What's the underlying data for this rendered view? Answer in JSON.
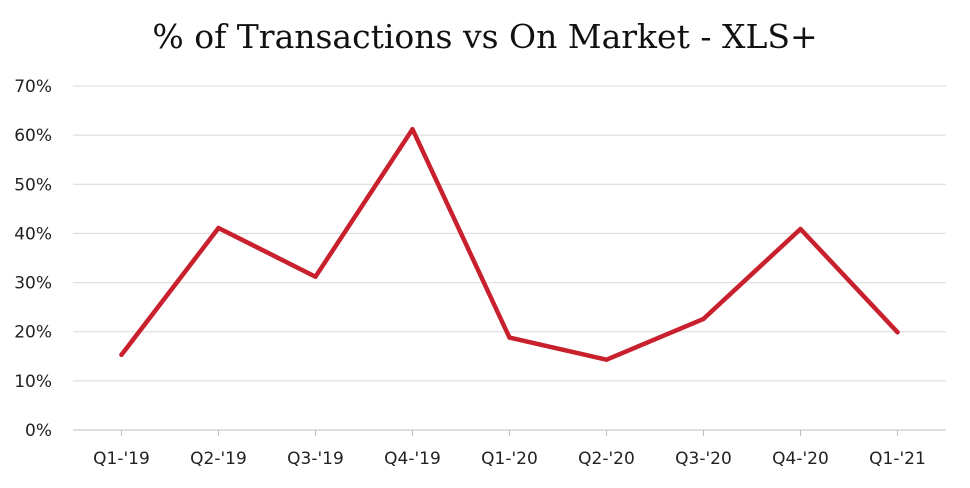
{
  "chart_data": {
    "type": "line",
    "title": "% of Transactions vs On Market - XLS+",
    "xlabel": "",
    "ylabel": "",
    "categories": [
      "Q1-'19",
      "Q2-'19",
      "Q3-'19",
      "Q4-'19",
      "Q1-'20",
      "Q2-'20",
      "Q3-'20",
      "Q4-'20",
      "Q1-'21"
    ],
    "series": [
      {
        "values": [
          15.3,
          41.1,
          31.2,
          61.2,
          18.8,
          14.3,
          22.6,
          40.9,
          19.9
        ],
        "color": "#c8202d"
      }
    ],
    "ylim": [
      0,
      70
    ],
    "yticks": [
      0,
      10,
      20,
      30,
      40,
      50,
      60,
      70
    ],
    "ytick_labels": [
      "0%",
      "10%",
      "20%",
      "30%",
      "40%",
      "50%",
      "60%",
      "70%"
    ],
    "grid": true,
    "legend": "none"
  }
}
